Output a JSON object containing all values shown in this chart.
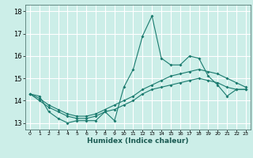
{
  "title": "",
  "xlabel": "Humidex (Indice chaleur)",
  "ylabel": "",
  "bg_color": "#cceee8",
  "grid_color": "#ffffff",
  "line_color": "#1a7a6e",
  "xlim": [
    -0.5,
    23.5
  ],
  "ylim": [
    12.7,
    18.3
  ],
  "yticks": [
    13,
    14,
    15,
    16,
    17,
    18
  ],
  "xticks": [
    0,
    1,
    2,
    3,
    4,
    5,
    6,
    7,
    8,
    9,
    10,
    11,
    12,
    13,
    14,
    15,
    16,
    17,
    18,
    19,
    20,
    21,
    22,
    23
  ],
  "series": [
    {
      "x": [
        0,
        1,
        2,
        3,
        4,
        5,
        6,
        7,
        8,
        9,
        10,
        11,
        12,
        13,
        14,
        15,
        16,
        17,
        18,
        19,
        20,
        21,
        22,
        23
      ],
      "y": [
        14.3,
        14.2,
        13.5,
        13.2,
        13.0,
        13.1,
        13.1,
        13.1,
        13.5,
        13.1,
        14.6,
        15.4,
        16.9,
        17.8,
        15.9,
        15.6,
        15.6,
        16.0,
        15.9,
        15.1,
        14.7,
        14.2,
        14.5,
        14.5
      ]
    },
    {
      "x": [
        0,
        1,
        2,
        3,
        4,
        5,
        6,
        7,
        8,
        9,
        10,
        11,
        12,
        13,
        14,
        15,
        16,
        17,
        18,
        19,
        20,
        21,
        22,
        23
      ],
      "y": [
        14.3,
        14.1,
        13.8,
        13.6,
        13.4,
        13.3,
        13.3,
        13.4,
        13.6,
        13.8,
        14.0,
        14.2,
        14.5,
        14.7,
        14.9,
        15.1,
        15.2,
        15.3,
        15.4,
        15.3,
        15.2,
        15.0,
        14.8,
        14.6
      ]
    },
    {
      "x": [
        0,
        1,
        2,
        3,
        4,
        5,
        6,
        7,
        8,
        9,
        10,
        11,
        12,
        13,
        14,
        15,
        16,
        17,
        18,
        19,
        20,
        21,
        22,
        23
      ],
      "y": [
        14.3,
        14.0,
        13.7,
        13.5,
        13.3,
        13.2,
        13.2,
        13.3,
        13.5,
        13.6,
        13.8,
        14.0,
        14.3,
        14.5,
        14.6,
        14.7,
        14.8,
        14.9,
        15.0,
        14.9,
        14.8,
        14.6,
        14.5,
        14.5
      ]
    }
  ],
  "xlabel_fontsize": 6.5,
  "xlabel_bold": true,
  "xtick_fontsize": 4.5,
  "ytick_fontsize": 6.0
}
